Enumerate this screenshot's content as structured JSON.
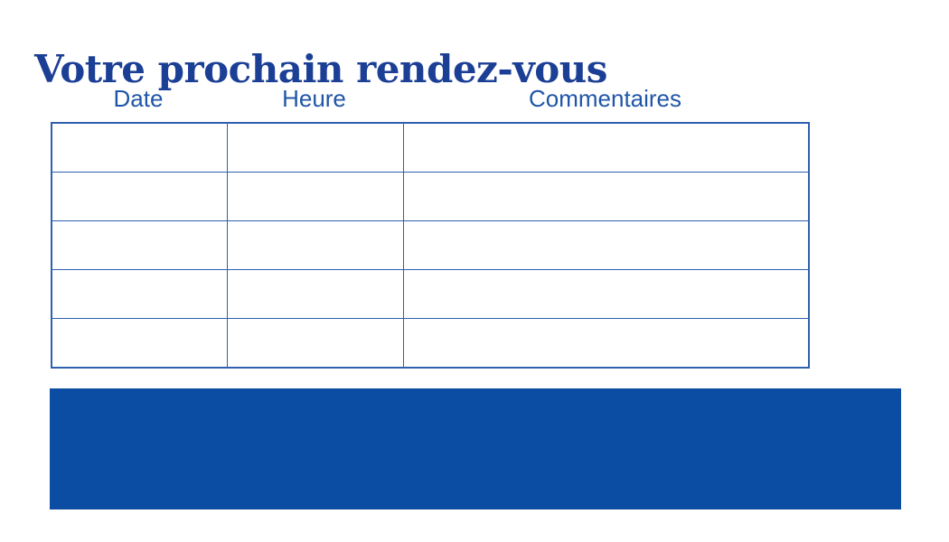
{
  "page": {
    "title": "Votre prochain rendez-vous"
  },
  "table": {
    "headers": [
      "Date",
      "Heure",
      "Commentaires"
    ],
    "rows": [
      [
        "",
        "",
        ""
      ],
      [
        "",
        "",
        ""
      ],
      [
        "",
        "",
        ""
      ],
      [
        "",
        "",
        ""
      ],
      [
        "",
        "",
        ""
      ]
    ]
  },
  "colors": {
    "title_text": "#1c3f96",
    "header_text": "#2056a7",
    "table_border": "#2e60ae",
    "banner_fill": "#0b4da2",
    "background": "#ffffff"
  }
}
